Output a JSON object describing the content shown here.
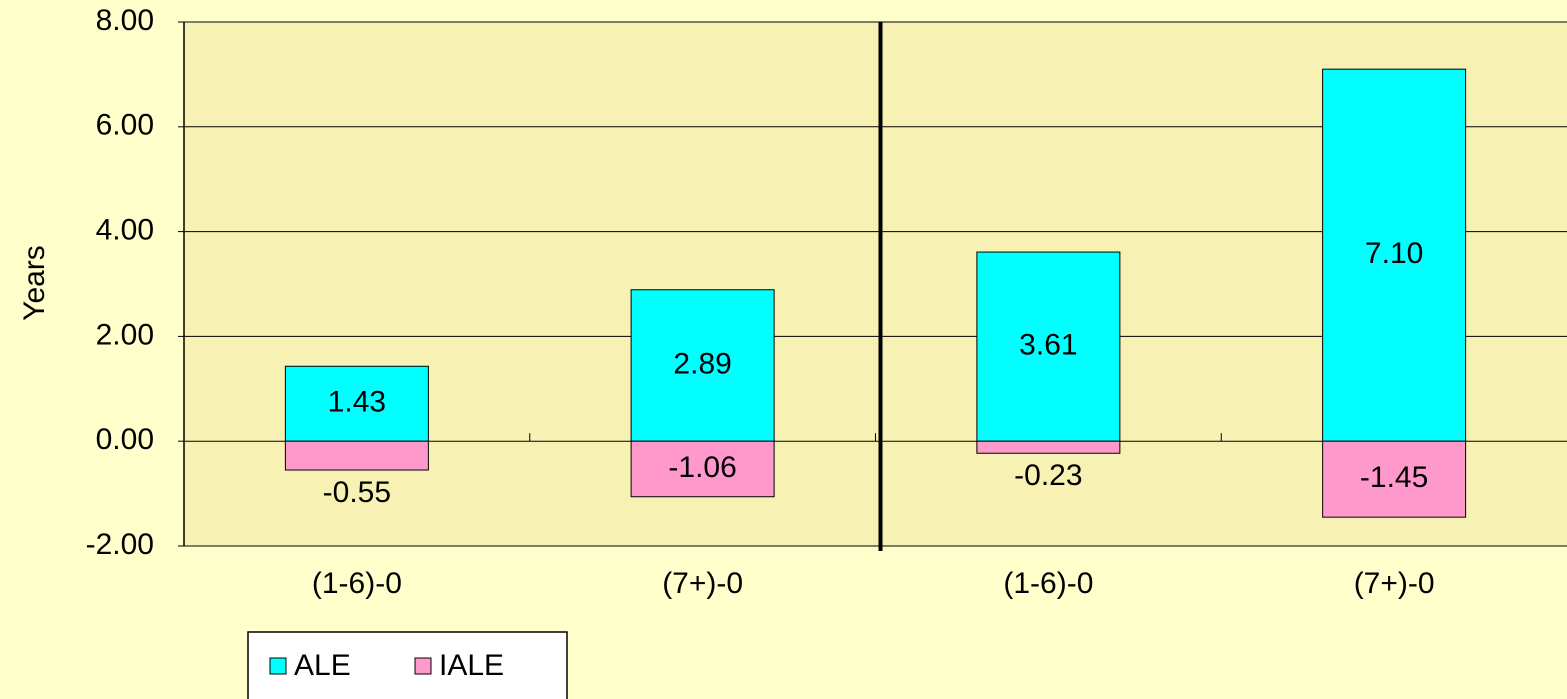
{
  "chart_data": {
    "type": "bar",
    "stacked": true,
    "y_label": "Years",
    "categories": [
      "(1-6)-0",
      "(7+)-0",
      "(1-6)-0",
      "(7+)-0"
    ],
    "series": [
      {
        "name": "ALE",
        "color": "#00ffff",
        "values": [
          1.43,
          2.89,
          3.61,
          7.1
        ],
        "value_labels": [
          "1.43",
          "2.89",
          "3.61",
          "7.10"
        ]
      },
      {
        "name": "IALE",
        "color": "#ff99cc",
        "values": [
          -0.55,
          -1.06,
          -0.23,
          -1.45
        ],
        "value_labels": [
          "-0.55",
          "-1.06",
          "-0.23",
          "-1.45"
        ]
      }
    ],
    "ylim": [
      -2,
      8
    ],
    "yticks": [
      {
        "value": -2,
        "label": "-2.00"
      },
      {
        "value": 0,
        "label": "0.00"
      },
      {
        "value": 2,
        "label": "2.00"
      },
      {
        "value": 4,
        "label": "4.00"
      },
      {
        "value": 6,
        "label": "6.00"
      },
      {
        "value": 8,
        "label": "8.00"
      }
    ],
    "grid": true,
    "legend": "bottom"
  }
}
